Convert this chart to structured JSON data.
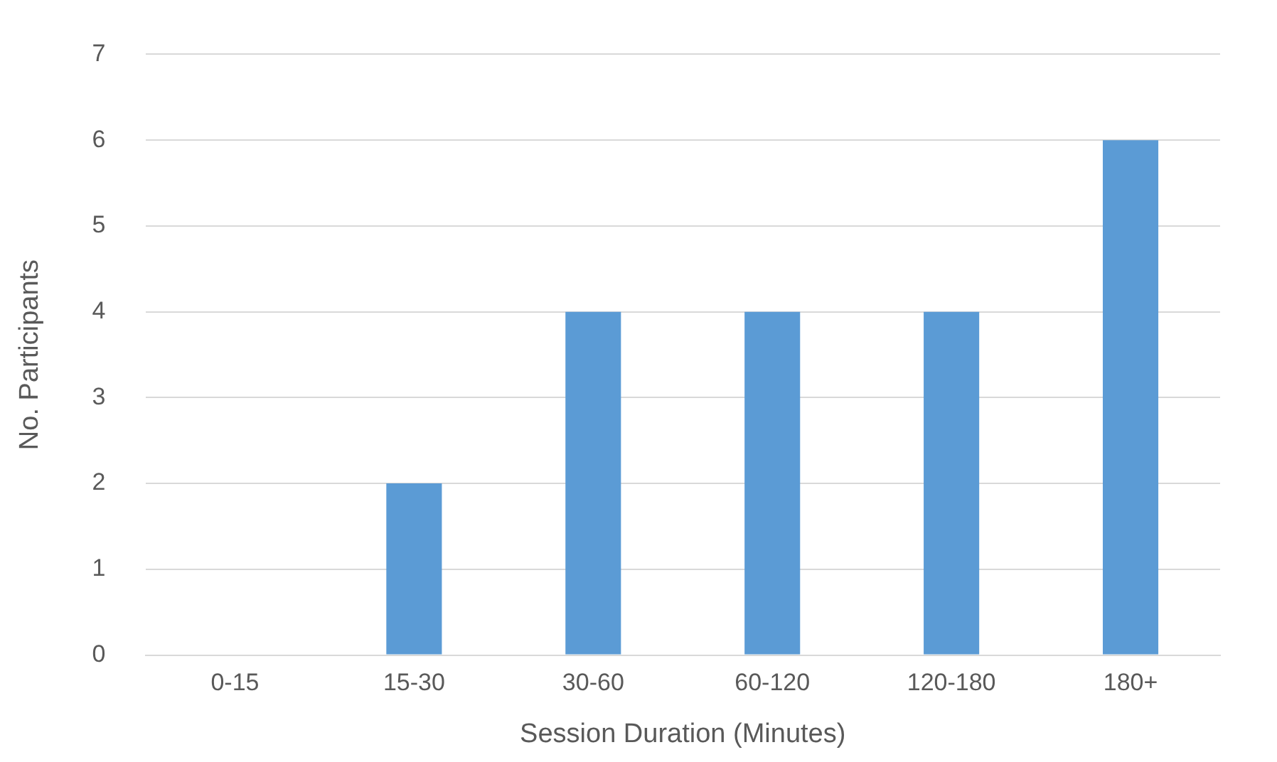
{
  "chart_data": {
    "type": "bar",
    "xlabel": "Session Duration (Minutes)",
    "ylabel": "No. Participants",
    "categories": [
      "0-15",
      "15-30",
      "30-60",
      "60-120",
      "120-180",
      "180+"
    ],
    "values": [
      0,
      2,
      4,
      4,
      4,
      6
    ],
    "color": "#5b9bd5",
    "ylim": [
      0,
      7
    ],
    "yticks": [
      0,
      1,
      2,
      3,
      4,
      5,
      6,
      7
    ],
    "grid": "y"
  }
}
